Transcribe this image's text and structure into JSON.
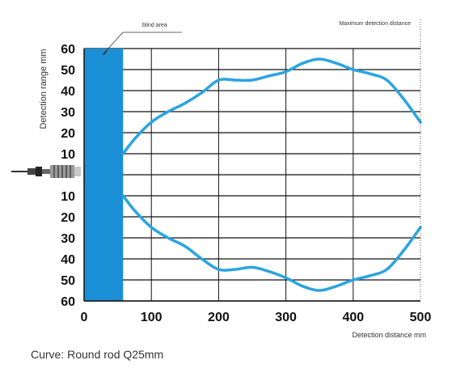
{
  "chart_data": {
    "type": "line",
    "title": "",
    "xlabel": "Detection distance mm",
    "ylabel": "Detection range mm",
    "xlim": [
      0,
      500
    ],
    "ylim": [
      -60,
      60
    ],
    "x_ticks": [
      0,
      100,
      200,
      300,
      400,
      500
    ],
    "y_ticks": [
      60,
      50,
      40,
      30,
      20,
      10,
      0,
      -10,
      -20,
      -30,
      -40,
      -50,
      -60
    ],
    "y_tick_labels": [
      "60",
      "50",
      "40",
      "30",
      "20",
      "10",
      "",
      "10",
      "20",
      "30",
      "40",
      "50",
      "60"
    ],
    "grid": true,
    "blind_area": {
      "label": "blind area",
      "x_range": [
        0,
        58
      ],
      "color": "#1b8fd6"
    },
    "max_distance_label": "Maximum detection distance",
    "max_distance": 500,
    "line_color": "#2aa4e0",
    "series": [
      {
        "x": [
          58,
          75,
          100,
          125,
          150,
          175,
          200,
          225,
          250,
          275,
          300,
          325,
          350,
          375,
          400,
          425,
          450,
          475,
          500
        ],
        "values": [
          10,
          17,
          25,
          30,
          34,
          39,
          45,
          45,
          45,
          47,
          49,
          53,
          55,
          53,
          50,
          48,
          45,
          36,
          25
        ]
      },
      {
        "x": [
          58,
          75,
          100,
          125,
          150,
          175,
          200,
          225,
          250,
          275,
          300,
          325,
          350,
          375,
          400,
          425,
          450,
          475,
          500
        ],
        "values": [
          -10,
          -17,
          -25,
          -30,
          -34,
          -40,
          -45,
          -45,
          -44,
          -46,
          -49,
          -53,
          -55,
          -53,
          -50,
          -48,
          -45,
          -36,
          -25
        ]
      }
    ]
  },
  "caption": "Curve: Round rod Q25mm",
  "icons": {
    "sensor": "proximity-sensor-icon"
  }
}
